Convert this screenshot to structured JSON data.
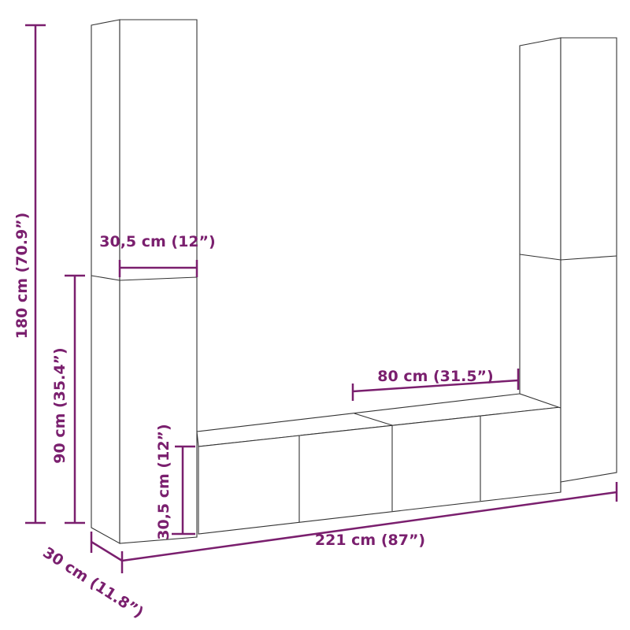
{
  "accent_color": "#7a1f6e",
  "dimensions": {
    "total_height": "180 cm (70.9”)",
    "lower_height": "90 cm (35.4”)",
    "low_unit_height": "30,5 cm (12”)",
    "tall_unit_width": "30,5 cm (12”)",
    "low_unit_width": "80 cm (31.5”)",
    "total_width": "221 cm (87”)",
    "depth": "30 cm (11.8”)"
  }
}
